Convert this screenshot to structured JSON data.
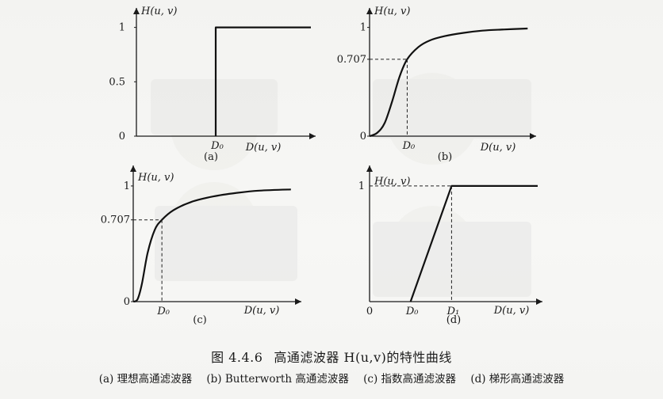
{
  "caption": {
    "figure_number": "图 4.4.6",
    "title": "高通滤波器 H(u,v)的特性曲线",
    "subcaptions": [
      "(a) 理想高通滤波器",
      "(b) Butterworth 高通滤波器",
      "(c) 指数高通滤波器",
      "(d) 梯形高通滤波器"
    ]
  },
  "chart_data": [
    {
      "id": "a",
      "type": "line",
      "panel_label": "(a)",
      "ylabel": "H(u, v)",
      "xlabel": "D(u, v)",
      "y_ticks": [
        "0",
        "0.5",
        "1"
      ],
      "x_ticks": [
        "D₀"
      ],
      "x_tick_values": [
        1
      ],
      "ylim": [
        0,
        1.15
      ],
      "xlim": [
        0,
        2.2
      ],
      "series": [
        {
          "x": [
            1,
            1,
            2.2
          ],
          "y": [
            0,
            1,
            1
          ]
        }
      ]
    },
    {
      "id": "b",
      "type": "line",
      "panel_label": "(b)",
      "ylabel": "H(u, v)",
      "xlabel": "D(u, v)",
      "y_ticks": [
        "0",
        "0.707",
        "1"
      ],
      "y_tick_values": [
        0,
        0.707,
        1
      ],
      "x_ticks": [
        "D₀"
      ],
      "x_tick_values": [
        1
      ],
      "ylim": [
        0,
        1.15
      ],
      "xlim": [
        0,
        4.3
      ],
      "reference_point": {
        "x": 1,
        "y": 0.707
      },
      "series": [
        {
          "x": [
            0,
            0.2,
            0.4,
            0.6,
            0.8,
            1.0,
            1.3,
            1.6,
            2.0,
            2.5,
            3.0,
            3.5,
            4.2
          ],
          "y": [
            0,
            0.03,
            0.12,
            0.32,
            0.55,
            0.707,
            0.82,
            0.88,
            0.92,
            0.95,
            0.97,
            0.98,
            0.99
          ]
        }
      ]
    },
    {
      "id": "c",
      "type": "line",
      "panel_label": "(c)",
      "ylabel": "H(u, v)",
      "xlabel": "D(u, v)",
      "y_ticks": [
        "0",
        "0.707",
        "1"
      ],
      "y_tick_values": [
        0,
        0.707,
        1
      ],
      "x_ticks": [
        "D₀"
      ],
      "x_tick_values": [
        1
      ],
      "ylim": [
        0,
        1.15
      ],
      "xlim": [
        0,
        5.7
      ],
      "reference_point": {
        "x": 1,
        "y": 0.707
      },
      "series": [
        {
          "x": [
            0,
            0.15,
            0.3,
            0.5,
            0.75,
            1.0,
            1.4,
            2.0,
            2.8,
            3.6,
            4.4,
            5.5
          ],
          "y": [
            0,
            0.02,
            0.15,
            0.42,
            0.62,
            0.707,
            0.79,
            0.86,
            0.91,
            0.94,
            0.96,
            0.97
          ]
        }
      ]
    },
    {
      "id": "d",
      "type": "line",
      "panel_label": "(d)",
      "ylabel": "H(u, v)",
      "xlabel": "D(u, v)",
      "y_ticks": [
        "1"
      ],
      "y_tick_values": [
        1
      ],
      "x_ticks": [
        "0",
        "D₀",
        "D₁"
      ],
      "x_tick_values": [
        0,
        1,
        2
      ],
      "ylim": [
        0,
        1.15
      ],
      "xlim": [
        0,
        4.1
      ],
      "series": [
        {
          "x": [
            1,
            2,
            4.1
          ],
          "y": [
            0,
            1,
            1
          ]
        }
      ]
    }
  ]
}
